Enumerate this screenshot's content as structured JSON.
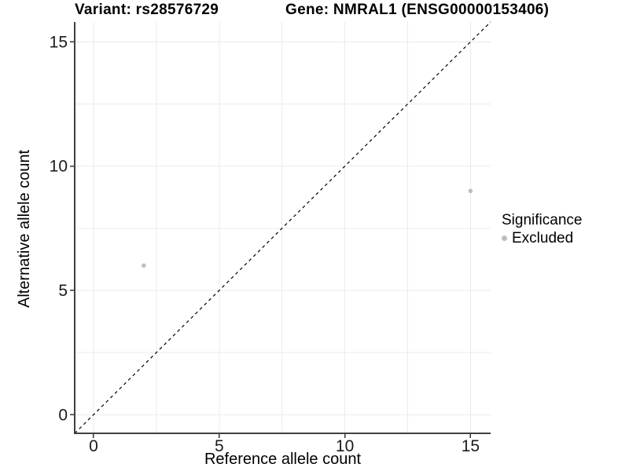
{
  "chart_data": {
    "type": "scatter",
    "title_left": "Variant: rs28576729",
    "title_right": "Gene: NMRAL1 (ENSG00000153406)",
    "xlabel": "Reference allele count",
    "ylabel": "Alternative allele count",
    "xlim": [
      -0.75,
      15.8
    ],
    "ylim": [
      -0.75,
      15.8
    ],
    "x_ticks": [
      0,
      5,
      10,
      15
    ],
    "y_ticks": [
      0,
      5,
      10,
      15
    ],
    "x_minor_gridlines": [
      2.5,
      7.5,
      12.5
    ],
    "y_minor_gridlines": [
      2.5,
      7.5,
      12.5
    ],
    "grid": true,
    "identity_line": {
      "style": "dashed",
      "equation": "y = x",
      "color": "#000000"
    },
    "series": [
      {
        "name": "Excluded",
        "color": "#bebebe",
        "point_radius": 2.8,
        "points": [
          [
            2,
            6
          ],
          [
            15,
            9
          ]
        ]
      }
    ],
    "legend": {
      "position": "right",
      "title": "Significance",
      "items": [
        {
          "label": "Excluded",
          "color": "#bebebe",
          "marker": "circle"
        }
      ]
    },
    "colors": {
      "background": "#ffffff",
      "gridline": "#ebebeb",
      "axis_line": "#404040",
      "tick": "#333333",
      "tick_label": "#1a1a1a",
      "text": "#000000"
    }
  }
}
